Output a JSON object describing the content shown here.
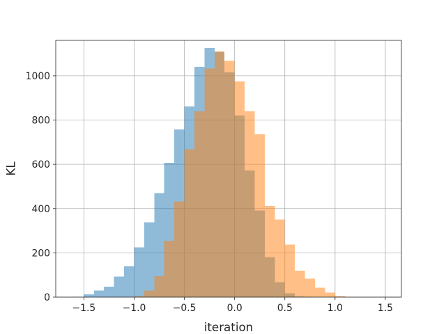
{
  "chart_data": {
    "type": "histogram",
    "title": "",
    "xlabel": "iteration",
    "ylabel": "KL",
    "xlim": [
      -1.78,
      1.66
    ],
    "ylim": [
      0,
      1160
    ],
    "grid": true,
    "x_ticks": [
      -1.5,
      -1.0,
      -0.5,
      0.0,
      0.5,
      1.0,
      1.5
    ],
    "x_tick_labels": [
      "−1.5",
      "−1.0",
      "−0.5",
      "0.0",
      "0.5",
      "1.0",
      "1.5"
    ],
    "y_ticks": [
      0,
      200,
      400,
      600,
      800,
      1000
    ],
    "y_tick_labels": [
      "0",
      "200",
      "400",
      "600",
      "800",
      "1000"
    ],
    "series": [
      {
        "color": "#1f77b4",
        "opacity": 0.5,
        "bin_start": -1.6,
        "bin_width": 0.1,
        "values": [
          2,
          12,
          30,
          47,
          92,
          140,
          225,
          338,
          470,
          607,
          758,
          862,
          1040,
          1125,
          1108,
          1015,
          820,
          572,
          392,
          180,
          67,
          18,
          3
        ]
      },
      {
        "color": "#ff7f0e",
        "opacity": 0.5,
        "bin_start": -1.0,
        "bin_width": 0.1,
        "values": [
          5,
          30,
          95,
          255,
          432,
          668,
          840,
          1032,
          1110,
          1068,
          975,
          840,
          735,
          412,
          350,
          238,
          120,
          83,
          42,
          20,
          4
        ]
      }
    ]
  }
}
